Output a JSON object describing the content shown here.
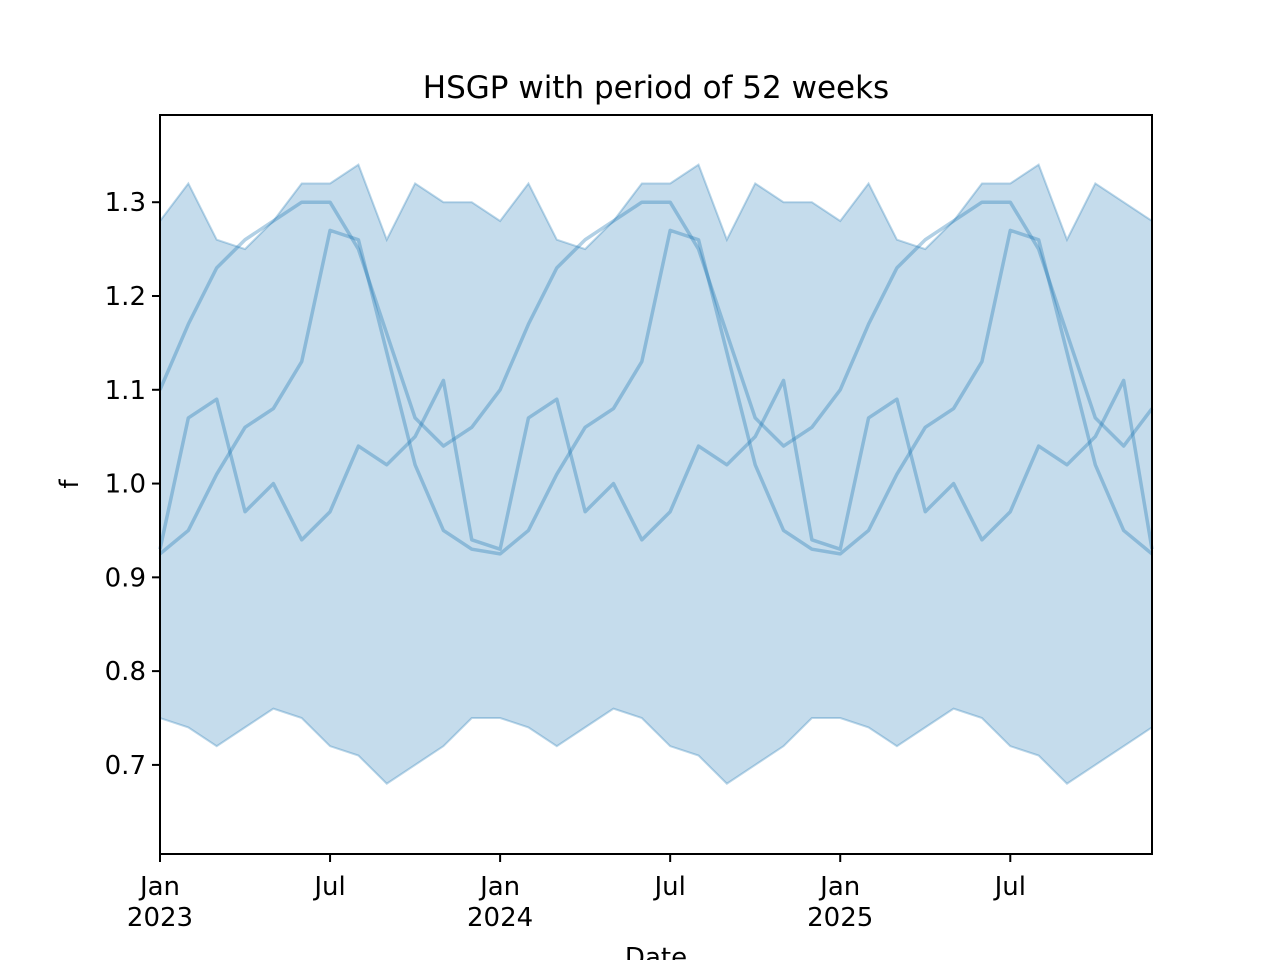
{
  "chart_data": {
    "type": "line",
    "title": "HSGP with period of 52 weeks",
    "x_label": "Date",
    "y_label": "f",
    "x": [
      "2023-01",
      "2023-02",
      "2023-03",
      "2023-04",
      "2023-05",
      "2023-06",
      "2023-07",
      "2023-08",
      "2023-09",
      "2023-10",
      "2023-11",
      "2023-12",
      "2024-01",
      "2024-02",
      "2024-03",
      "2024-04",
      "2024-05",
      "2024-06",
      "2024-07",
      "2024-08",
      "2024-09",
      "2024-10",
      "2024-11",
      "2024-12",
      "2025-01",
      "2025-02",
      "2025-03",
      "2025-04",
      "2025-05",
      "2025-06",
      "2025-07",
      "2025-08",
      "2025-09",
      "2025-10",
      "2025-11",
      "2025-12"
    ],
    "xlim": [
      "2023-01",
      "2025-12"
    ],
    "xticks": [
      {
        "value": "2023-01",
        "label": "Jan\n2023"
      },
      {
        "value": "2023-07",
        "label": "Jul"
      },
      {
        "value": "2024-01",
        "label": "Jan\n2024"
      },
      {
        "value": "2024-07",
        "label": "Jul"
      },
      {
        "value": "2025-01",
        "label": "Jan\n2025"
      },
      {
        "value": "2025-07",
        "label": "Jul"
      }
    ],
    "ylim": [
      0.605,
      1.393
    ],
    "yticks": [
      0.7,
      0.8,
      0.9,
      {
        "value": 1,
        "label": "1.0"
      },
      1.1,
      1.2,
      1.3
    ],
    "band": {
      "color": "#1f77b4",
      "upper": [
        1.28,
        1.32,
        1.26,
        1.25,
        1.28,
        1.32,
        1.32,
        1.34,
        1.26,
        1.32,
        1.3,
        1.3,
        1.28,
        1.32,
        1.26,
        1.25,
        1.28,
        1.32,
        1.32,
        1.34,
        1.26,
        1.32,
        1.3,
        1.3,
        1.28,
        1.32,
        1.26,
        1.25,
        1.28,
        1.32,
        1.32,
        1.34,
        1.26,
        1.32,
        1.3,
        1.28
      ],
      "lower": [
        0.75,
        0.74,
        0.72,
        0.74,
        0.76,
        0.75,
        0.72,
        0.71,
        0.68,
        0.7,
        0.72,
        0.75,
        0.75,
        0.74,
        0.72,
        0.74,
        0.76,
        0.75,
        0.72,
        0.71,
        0.68,
        0.7,
        0.72,
        0.75,
        0.75,
        0.74,
        0.72,
        0.74,
        0.76,
        0.75,
        0.72,
        0.71,
        0.68,
        0.7,
        0.72,
        0.74
      ]
    },
    "series": [
      {
        "color": "#1f77b4",
        "values": [
          1.1,
          1.17,
          1.23,
          1.26,
          1.28,
          1.3,
          1.3,
          1.25,
          1.16,
          1.07,
          1.04,
          1.06,
          1.1,
          1.17,
          1.23,
          1.26,
          1.28,
          1.3,
          1.3,
          1.25,
          1.16,
          1.07,
          1.04,
          1.06,
          1.1,
          1.17,
          1.23,
          1.26,
          1.28,
          1.3,
          1.3,
          1.25,
          1.16,
          1.07,
          1.04,
          1.08
        ]
      },
      {
        "color": "#1f77b4",
        "values": [
          0.925,
          0.95,
          1.01,
          1.06,
          1.08,
          1.13,
          1.27,
          1.26,
          1.14,
          1.02,
          0.95,
          0.93,
          0.925,
          0.95,
          1.01,
          1.06,
          1.08,
          1.13,
          1.27,
          1.26,
          1.14,
          1.02,
          0.95,
          0.93,
          0.925,
          0.95,
          1.01,
          1.06,
          1.08,
          1.13,
          1.27,
          1.26,
          1.14,
          1.02,
          0.95,
          0.925
        ]
      },
      {
        "color": "#1f77b4",
        "values": [
          0.93,
          1.07,
          1.09,
          0.97,
          1.0,
          0.94,
          0.97,
          1.04,
          1.02,
          1.05,
          1.11,
          0.94,
          0.93,
          1.07,
          1.09,
          0.97,
          1.0,
          0.94,
          0.97,
          1.04,
          1.02,
          1.05,
          1.11,
          0.94,
          0.93,
          1.07,
          1.09,
          0.97,
          1.0,
          0.94,
          0.97,
          1.04,
          1.02,
          1.05,
          1.11,
          0.93
        ]
      }
    ]
  }
}
